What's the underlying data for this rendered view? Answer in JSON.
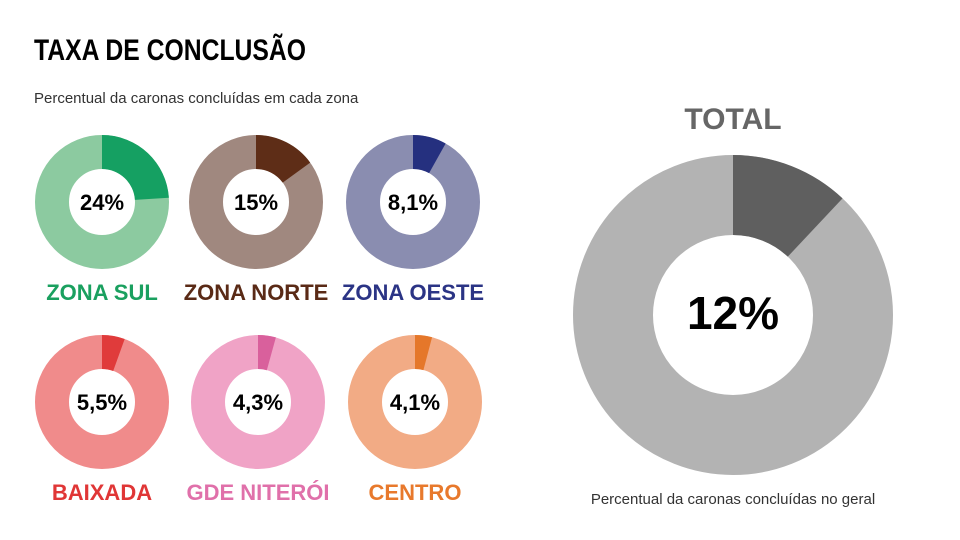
{
  "header": {
    "title": "TAXA DE CONCLUSÃO",
    "subtitle": "Percentual da caronas concluídas em cada zona"
  },
  "chart_data": [
    {
      "type": "donut",
      "title": "ZONA SUL",
      "values": [
        24
      ],
      "value_labels": [
        "24%"
      ],
      "color": "#15a062",
      "track_color": "#8ccaa0",
      "title_color": "#1aa05f"
    },
    {
      "type": "donut",
      "title": "ZONA NORTE",
      "values": [
        15
      ],
      "value_labels": [
        "15%"
      ],
      "color": "#5e2d17",
      "track_color": "#a0887f",
      "title_color": "#5a2a16"
    },
    {
      "type": "donut",
      "title": "ZONA OESTE",
      "values": [
        8.1
      ],
      "value_labels": [
        "8,1%"
      ],
      "color": "#25307f",
      "track_color": "#8a8db0",
      "title_color": "#2b3485"
    },
    {
      "type": "donut",
      "title": "BAIXADA",
      "values": [
        5.5
      ],
      "value_labels": [
        "5,5%"
      ],
      "color": "#e03b3b",
      "track_color": "#f08b8b",
      "title_color": "#e03636"
    },
    {
      "type": "donut",
      "title": "GDE NITERÓI",
      "values": [
        4.3
      ],
      "value_labels": [
        "4,3%"
      ],
      "color": "#d9609c",
      "track_color": "#f0a3c6",
      "title_color": "#e070aa"
    },
    {
      "type": "donut",
      "title": "CENTRO",
      "values": [
        4.1
      ],
      "value_labels": [
        "4,1%"
      ],
      "color": "#e5772a",
      "track_color": "#f2ab85",
      "title_color": "#e8792c"
    },
    {
      "type": "donut",
      "title": "TOTAL",
      "values": [
        12
      ],
      "value_labels": [
        "12%"
      ],
      "color": "#5f5f5f",
      "track_color": "#b3b3b3",
      "title_color": "#666666",
      "caption": "Percentual da caronas concluídas no geral"
    }
  ]
}
